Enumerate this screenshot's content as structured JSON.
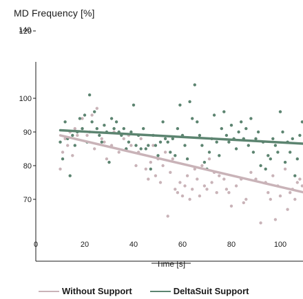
{
  "chart_data": {
    "type": "scatter",
    "title": "MD Frequency  [%]",
    "xlabel": "Time [s]",
    "ylabel": "",
    "xlim": [
      0,
      110
    ],
    "ylim": [
      55,
      125
    ],
    "x_ticks": [
      "0",
      "20",
      "40",
      "60",
      "80",
      "100"
    ],
    "y_ticks": [
      "70",
      "80",
      "90",
      "100",
      "120"
    ],
    "y_top_label": "140",
    "legend_position": "bottom",
    "grid": false,
    "series": [
      {
        "name": "Without Support",
        "color": "#c9b3b8",
        "trend": {
          "x": [
            10,
            110
          ],
          "y": [
            89,
            72
          ]
        },
        "points": [
          [
            10,
            79
          ],
          [
            11,
            84
          ],
          [
            12,
            88
          ],
          [
            13,
            86
          ],
          [
            14,
            90
          ],
          [
            15,
            83
          ],
          [
            16,
            91
          ],
          [
            17,
            89
          ],
          [
            19,
            94
          ],
          [
            21,
            89
          ],
          [
            22,
            90
          ],
          [
            23,
            95
          ],
          [
            24,
            85
          ],
          [
            25,
            97
          ],
          [
            27,
            88
          ],
          [
            28,
            87
          ],
          [
            29,
            82
          ],
          [
            31,
            86
          ],
          [
            32,
            90
          ],
          [
            34,
            84
          ],
          [
            36,
            88
          ],
          [
            37,
            85
          ],
          [
            38,
            89
          ],
          [
            39,
            86
          ],
          [
            41,
            80
          ],
          [
            42,
            84
          ],
          [
            43,
            88
          ],
          [
            45,
            79
          ],
          [
            46,
            76
          ],
          [
            47,
            81
          ],
          [
            48,
            86
          ],
          [
            49,
            77
          ],
          [
            50,
            82
          ],
          [
            51,
            75
          ],
          [
            52,
            80
          ],
          [
            53,
            84
          ],
          [
            54,
            65
          ],
          [
            55,
            78
          ],
          [
            56,
            82
          ],
          [
            57,
            73
          ],
          [
            58,
            72
          ],
          [
            59,
            75
          ],
          [
            60,
            71
          ],
          [
            61,
            74
          ],
          [
            62,
            77
          ],
          [
            63,
            70
          ],
          [
            64,
            73
          ],
          [
            65,
            79
          ],
          [
            66,
            76
          ],
          [
            67,
            71
          ],
          [
            68,
            80
          ],
          [
            69,
            74
          ],
          [
            70,
            73
          ],
          [
            71,
            82
          ],
          [
            72,
            75
          ],
          [
            73,
            78
          ],
          [
            74,
            72
          ],
          [
            75,
            77
          ],
          [
            77,
            76
          ],
          [
            78,
            73
          ],
          [
            79,
            72
          ],
          [
            80,
            68
          ],
          [
            82,
            74
          ],
          [
            84,
            76
          ],
          [
            85,
            69
          ],
          [
            86,
            70
          ],
          [
            88,
            78
          ],
          [
            90,
            76
          ],
          [
            92,
            63
          ],
          [
            94,
            75
          ],
          [
            95,
            72
          ],
          [
            96,
            70
          ],
          [
            97,
            77
          ],
          [
            98,
            64
          ],
          [
            99,
            74
          ],
          [
            100,
            71
          ],
          [
            102,
            79
          ],
          [
            103,
            67
          ],
          [
            104,
            72
          ],
          [
            105,
            73
          ],
          [
            106,
            70
          ],
          [
            107,
            75
          ],
          [
            108,
            76
          ],
          [
            109,
            74
          ],
          [
            110,
            71
          ]
        ]
      },
      {
        "name": "DeltaSuit Support",
        "color": "#5c8470",
        "trend": {
          "x": [
            10,
            110
          ],
          "y": [
            90.5,
            86.5
          ]
        },
        "points": [
          [
            10,
            87
          ],
          [
            11,
            82
          ],
          [
            12,
            93
          ],
          [
            13,
            88
          ],
          [
            14,
            77
          ],
          [
            15,
            89
          ],
          [
            16,
            86
          ],
          [
            17,
            90
          ],
          [
            18,
            94
          ],
          [
            19,
            91
          ],
          [
            20,
            95
          ],
          [
            21,
            87
          ],
          [
            22,
            101
          ],
          [
            23,
            93
          ],
          [
            24,
            96
          ],
          [
            25,
            91
          ],
          [
            26,
            89
          ],
          [
            27,
            87
          ],
          [
            28,
            92
          ],
          [
            29,
            90
          ],
          [
            30,
            81
          ],
          [
            31,
            94
          ],
          [
            32,
            91
          ],
          [
            33,
            93
          ],
          [
            34,
            90
          ],
          [
            35,
            89
          ],
          [
            36,
            91
          ],
          [
            37,
            85
          ],
          [
            38,
            87
          ],
          [
            39,
            90
          ],
          [
            40,
            98
          ],
          [
            41,
            86
          ],
          [
            42,
            89
          ],
          [
            43,
            85
          ],
          [
            44,
            91
          ],
          [
            45,
            85
          ],
          [
            46,
            86
          ],
          [
            47,
            79
          ],
          [
            48,
            89
          ],
          [
            49,
            86
          ],
          [
            50,
            83
          ],
          [
            51,
            87
          ],
          [
            52,
            93
          ],
          [
            53,
            88
          ],
          [
            54,
            87
          ],
          [
            55,
            84
          ],
          [
            56,
            88
          ],
          [
            57,
            83
          ],
          [
            58,
            91
          ],
          [
            59,
            98
          ],
          [
            60,
            89
          ],
          [
            61,
            86
          ],
          [
            62,
            82
          ],
          [
            63,
            99
          ],
          [
            64,
            94
          ],
          [
            65,
            104
          ],
          [
            66,
            93
          ],
          [
            67,
            89
          ],
          [
            68,
            86
          ],
          [
            69,
            81
          ],
          [
            70,
            79
          ],
          [
            71,
            84
          ],
          [
            72,
            88
          ],
          [
            73,
            95
          ],
          [
            74,
            87
          ],
          [
            75,
            83
          ],
          [
            76,
            91
          ],
          [
            77,
            96
          ],
          [
            78,
            89
          ],
          [
            79,
            87
          ],
          [
            80,
            92
          ],
          [
            81,
            88
          ],
          [
            82,
            85
          ],
          [
            83,
            90
          ],
          [
            84,
            93
          ],
          [
            85,
            88
          ],
          [
            86,
            91
          ],
          [
            87,
            86
          ],
          [
            88,
            94
          ],
          [
            89,
            84
          ],
          [
            90,
            88
          ],
          [
            91,
            90
          ],
          [
            92,
            80
          ],
          [
            93,
            87
          ],
          [
            94,
            79
          ],
          [
            95,
            83
          ],
          [
            96,
            82
          ],
          [
            97,
            88
          ],
          [
            98,
            86
          ],
          [
            99,
            84
          ],
          [
            100,
            96
          ],
          [
            101,
            90
          ],
          [
            102,
            81
          ],
          [
            103,
            87
          ],
          [
            104,
            84
          ],
          [
            105,
            88
          ],
          [
            106,
            77
          ],
          [
            107,
            82
          ],
          [
            108,
            89
          ],
          [
            109,
            93
          ],
          [
            110,
            86
          ]
        ]
      }
    ]
  }
}
